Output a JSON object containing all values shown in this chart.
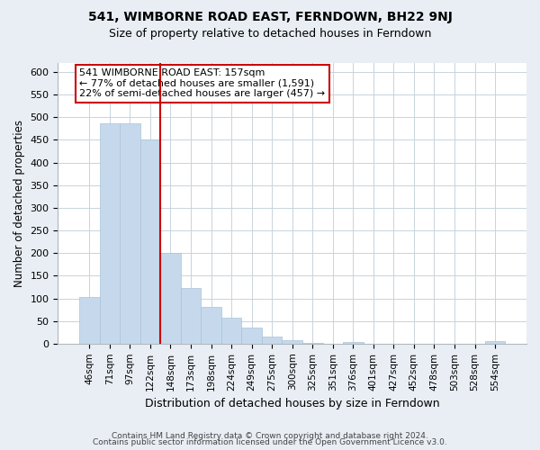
{
  "title": "541, WIMBORNE ROAD EAST, FERNDOWN, BH22 9NJ",
  "subtitle": "Size of property relative to detached houses in Ferndown",
  "xlabel": "Distribution of detached houses by size in Ferndown",
  "ylabel": "Number of detached properties",
  "bar_labels": [
    "46sqm",
    "71sqm",
    "97sqm",
    "122sqm",
    "148sqm",
    "173sqm",
    "198sqm",
    "224sqm",
    "249sqm",
    "275sqm",
    "300sqm",
    "325sqm",
    "351sqm",
    "376sqm",
    "401sqm",
    "427sqm",
    "452sqm",
    "478sqm",
    "503sqm",
    "528sqm",
    "554sqm"
  ],
  "bar_values": [
    103,
    487,
    487,
    450,
    200,
    122,
    82,
    58,
    35,
    15,
    8,
    2,
    0,
    3,
    0,
    0,
    0,
    0,
    0,
    0,
    5
  ],
  "bar_color": "#c6d9ec",
  "bar_edge_color": "#a8c4d8",
  "vline_color": "#cc0000",
  "annotation_text": "541 WIMBORNE ROAD EAST: 157sqm\n← 77% of detached houses are smaller (1,591)\n22% of semi-detached houses are larger (457) →",
  "annotation_box_color": "white",
  "annotation_box_edge_color": "#cc0000",
  "ylim": [
    0,
    620
  ],
  "yticks": [
    0,
    50,
    100,
    150,
    200,
    250,
    300,
    350,
    400,
    450,
    500,
    550,
    600
  ],
  "footer_line1": "Contains HM Land Registry data © Crown copyright and database right 2024.",
  "footer_line2": "Contains public sector information licensed under the Open Government Licence v3.0.",
  "bg_color": "#e8eef4",
  "plot_bg_color": "#ffffff",
  "grid_color": "#c8d4dc"
}
